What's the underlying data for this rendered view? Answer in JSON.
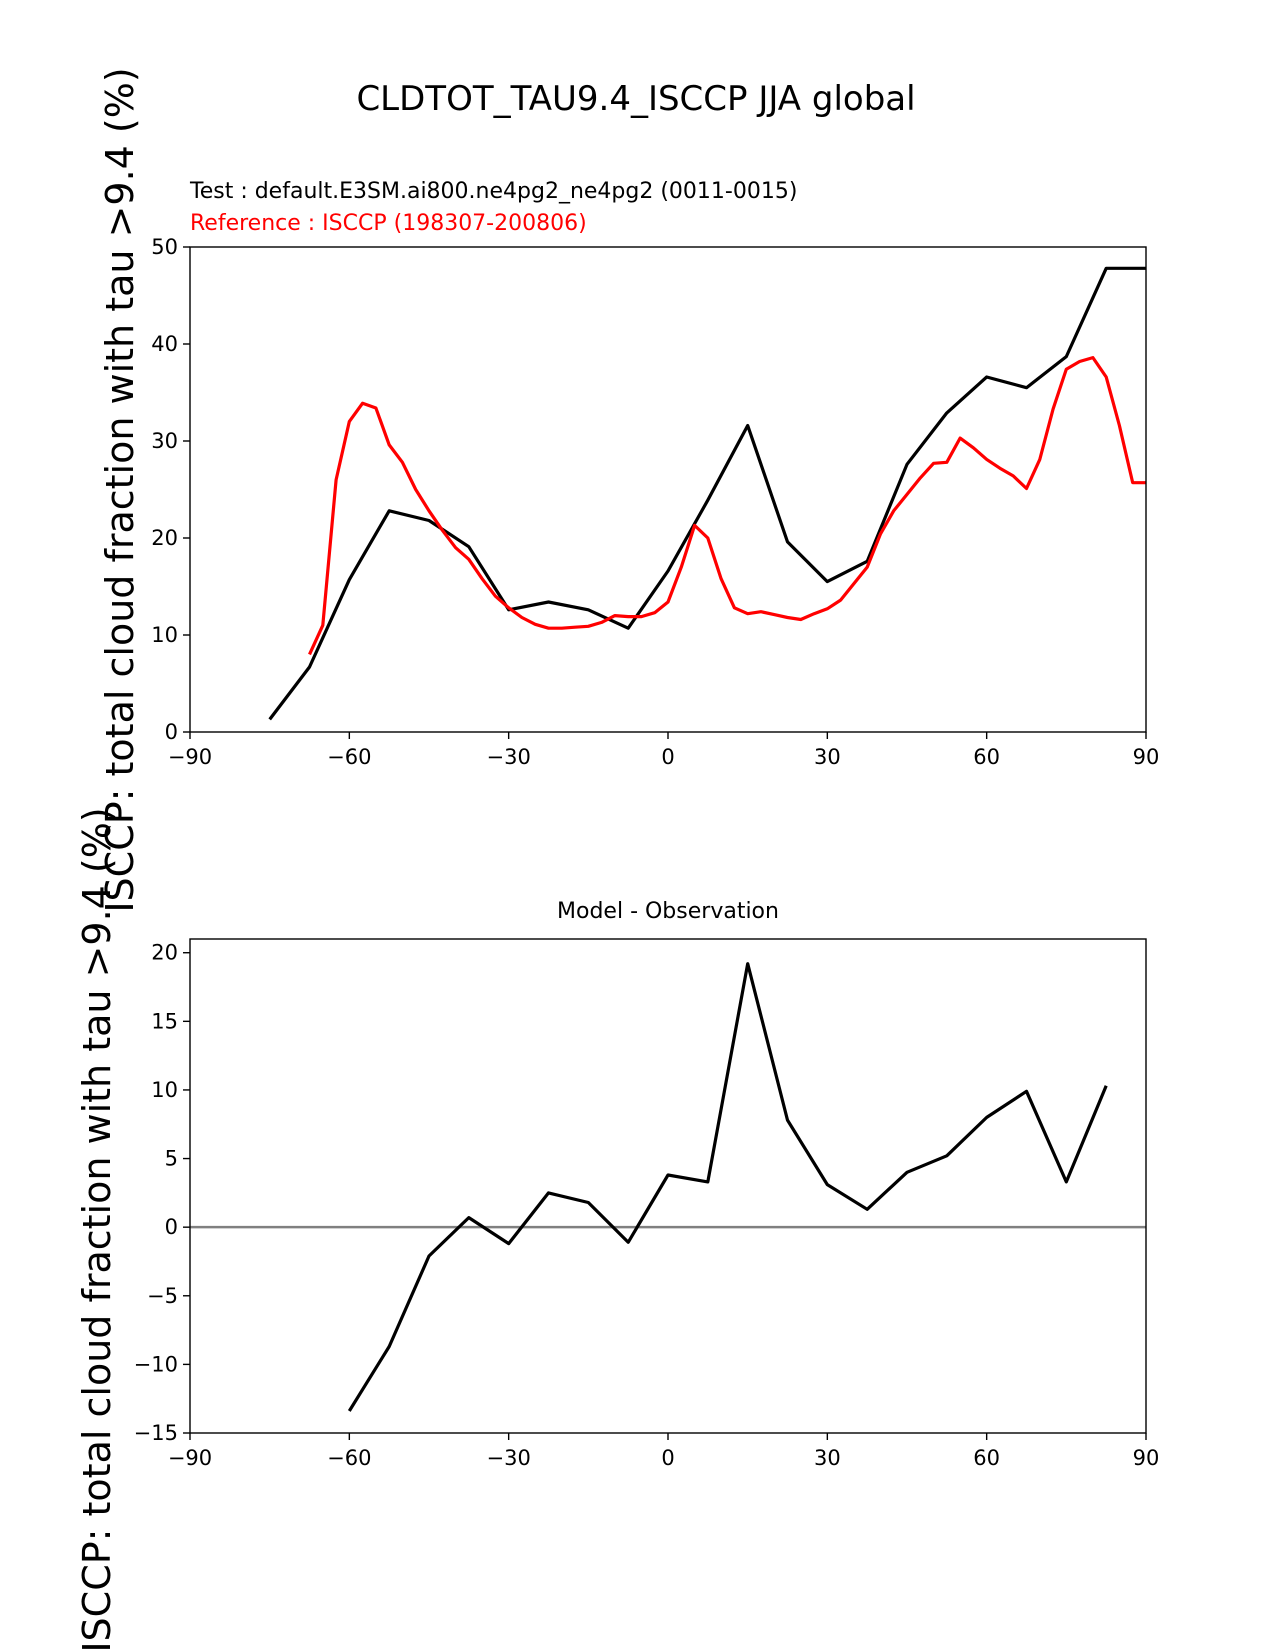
{
  "figure": {
    "title": "CLDTOT_TAU9.4_ISCCP JJA global"
  },
  "chart_data": [
    {
      "type": "line",
      "test_label": "Test : default.E3SM.ai800.ne4pg2_ne4pg2 (0011-0015)",
      "reference_label": "Reference : ISCCP (198307-200806)",
      "ylabel": "ISCCP: total cloud fraction with tau >9.4 (%)",
      "xlim": [
        -90,
        90
      ],
      "ylim": [
        0,
        50
      ],
      "xticks": [
        -90,
        -60,
        -30,
        0,
        30,
        60,
        90
      ],
      "yticks": [
        0,
        10,
        20,
        30,
        40,
        50
      ],
      "xtick_labels": [
        "−90",
        "−60",
        "−30",
        "0",
        "30",
        "60",
        "90"
      ],
      "ytick_labels": [
        "0",
        "10",
        "20",
        "30",
        "40",
        "50"
      ],
      "series": [
        {
          "color": "#000000",
          "x": [
            -75,
            -67.5,
            -60,
            -52.5,
            -45,
            -37.5,
            -30,
            -22.5,
            -15,
            -7.5,
            0,
            7.5,
            15,
            22.5,
            30,
            37.5,
            45,
            52.5,
            60,
            67.5,
            75,
            82.5,
            90
          ],
          "y": [
            1.3,
            6.7,
            15.7,
            22.8,
            21.8,
            19.1,
            12.6,
            13.4,
            12.6,
            10.7,
            16.6,
            23.9,
            31.6,
            19.6,
            15.5,
            17.6,
            27.6,
            32.9,
            36.6,
            35.5,
            38.7,
            47.8,
            47.8
          ]
        },
        {
          "color": "#ff0000",
          "x": [
            -67.5,
            -65,
            -62.5,
            -60,
            -57.5,
            -55,
            -52.5,
            -50,
            -47.5,
            -45,
            -42.5,
            -40,
            -37.5,
            -35,
            -32.5,
            -30,
            -27.5,
            -25,
            -22.5,
            -20,
            -17.5,
            -15,
            -12.5,
            -10,
            -7.5,
            -5,
            -2.5,
            0,
            2.5,
            5,
            7.5,
            10,
            12.5,
            15,
            17.5,
            20,
            22.5,
            25,
            27.5,
            30,
            32.5,
            35,
            37.5,
            40,
            42.5,
            45,
            47.5,
            50,
            52.5,
            55,
            57.5,
            60,
            62.5,
            65,
            67.5,
            70,
            72.5,
            75,
            77.5,
            80,
            82.5,
            85,
            87.5,
            90
          ],
          "y": [
            8.0,
            11.0,
            26.0,
            32.0,
            33.9,
            33.4,
            29.6,
            27.8,
            25.0,
            22.8,
            20.8,
            19.0,
            17.8,
            15.8,
            14.0,
            12.8,
            11.8,
            11.1,
            10.7,
            10.7,
            10.8,
            10.9,
            11.3,
            12.0,
            11.9,
            11.9,
            12.3,
            13.4,
            17.0,
            21.3,
            20.0,
            15.8,
            12.8,
            12.2,
            12.4,
            12.1,
            11.8,
            11.6,
            12.2,
            12.7,
            13.6,
            15.3,
            17.0,
            20.4,
            22.8,
            24.5,
            26.2,
            27.7,
            27.8,
            30.3,
            29.3,
            28.1,
            27.2,
            26.4,
            25.1,
            28.1,
            33.3,
            37.4,
            38.2,
            38.6,
            36.6,
            31.6,
            25.7,
            25.7
          ]
        }
      ]
    },
    {
      "type": "line",
      "title": "Model - Observation",
      "ylabel": "ISCCP: total cloud fraction with tau >9.4 (%)",
      "xlim": [
        -90,
        90
      ],
      "ylim": [
        -15,
        21
      ],
      "xticks": [
        -90,
        -60,
        -30,
        0,
        30,
        60,
        90
      ],
      "yticks": [
        -15,
        -10,
        -5,
        0,
        5,
        10,
        15,
        20
      ],
      "xtick_labels": [
        "−90",
        "−60",
        "−30",
        "0",
        "30",
        "60",
        "90"
      ],
      "ytick_labels": [
        "−15",
        "−10",
        "−5",
        "0",
        "5",
        "10",
        "15",
        "20"
      ],
      "zero_line_color": "#808080",
      "series": [
        {
          "color": "#000000",
          "x": [
            -60,
            -52.5,
            -45,
            -37.5,
            -30,
            -22.5,
            -15,
            -7.5,
            0,
            7.5,
            15,
            22.5,
            30,
            37.5,
            45,
            52.5,
            60,
            67.5,
            75,
            82.5
          ],
          "y": [
            -13.4,
            -8.7,
            -2.1,
            0.7,
            -1.2,
            2.5,
            1.8,
            -1.1,
            3.8,
            3.3,
            19.2,
            7.8,
            3.1,
            1.3,
            4.0,
            5.2,
            8.0,
            9.9,
            3.3,
            10.3
          ]
        }
      ]
    }
  ]
}
